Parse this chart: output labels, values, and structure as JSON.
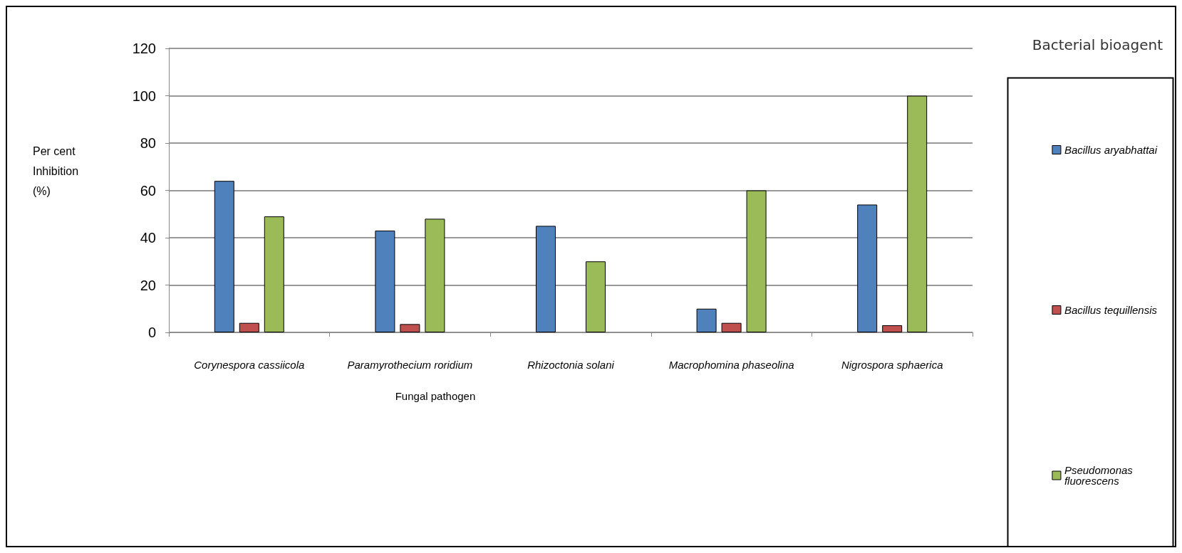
{
  "chart_data": {
    "type": "bar",
    "xlabel": "Fungal pathogen",
    "ylabel": "Per cent Inhibition (%)",
    "legend_title": "Bacterial bioagent",
    "categories": [
      "Corynespora cassiicola",
      "Paramyrothecium roridium",
      "Rhizoctonia solani",
      "Macrophomina phaseolina",
      "Nigrospora sphaerica"
    ],
    "series": [
      {
        "name": "Bacillus aryabhattai",
        "color": "#4f81bd",
        "values": [
          64,
          43,
          45,
          10,
          54
        ]
      },
      {
        "name": "Bacillus tequillensis",
        "color": "#c0504d",
        "values": [
          4,
          3.5,
          null,
          4,
          3
        ]
      },
      {
        "name": "Pseudomonas fluorescens",
        "color": "#9bbb59",
        "values": [
          49,
          48,
          30,
          60,
          100
        ]
      }
    ],
    "ylim": [
      0,
      120
    ],
    "yticks": [
      0,
      20,
      40,
      60,
      80,
      100,
      120
    ],
    "grid": "y",
    "legend": "right"
  }
}
